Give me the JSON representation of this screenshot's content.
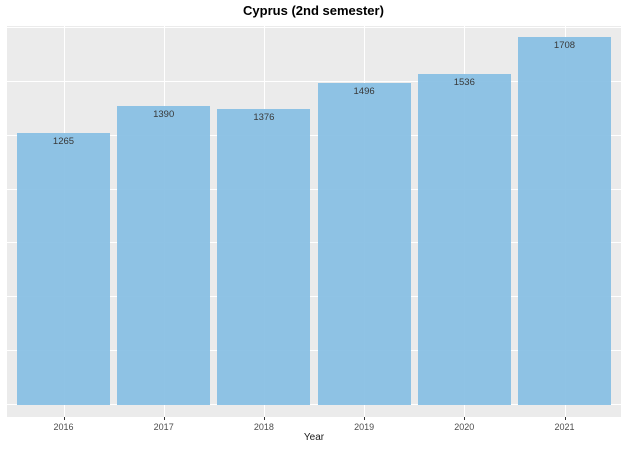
{
  "chart_data": {
    "type": "bar",
    "title": "Cyprus (2nd semester)",
    "xlabel": "Year",
    "ylabel": "",
    "categories": [
      "2016",
      "2017",
      "2018",
      "2019",
      "2020",
      "2021"
    ],
    "values": [
      1265,
      1390,
      1376,
      1496,
      1536,
      1708
    ],
    "bar_labels": [
      "1265",
      "1390",
      "1376",
      "1496",
      "1536",
      "1708"
    ],
    "ylim": [
      0,
      1760
    ],
    "gridlines": [
      0,
      250,
      500,
      750,
      1000,
      1250,
      1500,
      1750
    ],
    "grid": true,
    "legend": false,
    "bar_color": "#86BEE3",
    "panel_bg": "#EBEBEB",
    "gridline_color": "#FFFFFF",
    "tick_label_color": "#4D4D4D",
    "value_label_color": "#383838"
  }
}
